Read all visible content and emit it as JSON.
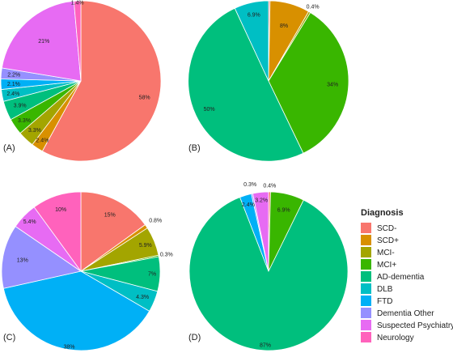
{
  "chart_data": [
    {
      "type": "pie",
      "panel_label": "(A)",
      "slices": [
        {
          "category": "SCD-",
          "value": 58,
          "label": "58%"
        },
        {
          "category": "SCD+",
          "value": 2.4,
          "label": "2.4%"
        },
        {
          "category": "MCI-",
          "value": 3.3,
          "label": "3.3%"
        },
        {
          "category": "MCI+",
          "value": 3.3,
          "label": "3.3%"
        },
        {
          "category": "AD-dementia",
          "value": 3.9,
          "label": "3.9%"
        },
        {
          "category": "DLB",
          "value": 2.4,
          "label": "2.4%"
        },
        {
          "category": "FTD",
          "value": 2.1,
          "label": "2.1%"
        },
        {
          "category": "Dementia Other",
          "value": 2.2,
          "label": "2.2%"
        },
        {
          "category": "Suspected Psychiatry",
          "value": 21,
          "label": "21%"
        },
        {
          "category": "Neurology",
          "value": 1.4,
          "label": "1.4%"
        }
      ]
    },
    {
      "type": "pie",
      "panel_label": "(B)",
      "slices": [
        {
          "category": "SCD-",
          "value": 0.3,
          "label": "0.3%"
        },
        {
          "category": "SCD+",
          "value": 8,
          "label": "8%"
        },
        {
          "category": "MCI-",
          "value": 0.4,
          "label": "0.4%"
        },
        {
          "category": "MCI+",
          "value": 34,
          "label": "34%"
        },
        {
          "category": "AD-dementia",
          "value": 50,
          "label": "50%"
        },
        {
          "category": "DLB",
          "value": 6.9,
          "label": "6.9%"
        }
      ]
    },
    {
      "type": "pie",
      "panel_label": "(C)",
      "slices": [
        {
          "category": "SCD-",
          "value": 15,
          "label": "15%"
        },
        {
          "category": "SCD+",
          "value": 0.8,
          "label": "0.8%"
        },
        {
          "category": "MCI-",
          "value": 5.9,
          "label": "5.9%"
        },
        {
          "category": "MCI+",
          "value": 0.3,
          "label": "0.3%"
        },
        {
          "category": "AD-dementia",
          "value": 7,
          "label": "7%"
        },
        {
          "category": "DLB",
          "value": 4.3,
          "label": "4.3%"
        },
        {
          "category": "FTD",
          "value": 38,
          "label": "38%"
        },
        {
          "category": "Dementia Other",
          "value": 13,
          "label": "13%"
        },
        {
          "category": "Suspected Psychiatry",
          "value": 5.4,
          "label": "5.4%"
        },
        {
          "category": "Neurology",
          "value": 10,
          "label": "10%"
        }
      ]
    },
    {
      "type": "pie",
      "panel_label": "(D)",
      "slices": [
        {
          "category": "SCD-",
          "value": 0.4,
          "label": "0.4%"
        },
        {
          "category": "MCI+",
          "value": 6.9,
          "label": "6.9%"
        },
        {
          "category": "AD-dementia",
          "value": 87,
          "label": "87%"
        },
        {
          "category": "FTD",
          "value": 2.4,
          "label": "2.4%"
        },
        {
          "category": "Dementia Other",
          "value": 0.3,
          "label": "0.3%"
        },
        {
          "category": "Suspected Psychiatry",
          "value": 3.2,
          "label": "3.2%"
        }
      ]
    }
  ],
  "legend": {
    "title": "Diagnosis",
    "items": [
      {
        "label": "SCD-",
        "color": "#F8766D"
      },
      {
        "label": "SCD+",
        "color": "#D89000"
      },
      {
        "label": "MCI-",
        "color": "#A3A500"
      },
      {
        "label": "MCI+",
        "color": "#39B600"
      },
      {
        "label": "AD-dementia",
        "color": "#00BF7D"
      },
      {
        "label": "DLB",
        "color": "#00BFC4"
      },
      {
        "label": "FTD",
        "color": "#00B0F6"
      },
      {
        "label": "Dementia Other",
        "color": "#9590FF"
      },
      {
        "label": "Suspected Psychiatry",
        "color": "#E76BF3"
      },
      {
        "label": "Neurology",
        "color": "#FF62BC"
      }
    ]
  }
}
